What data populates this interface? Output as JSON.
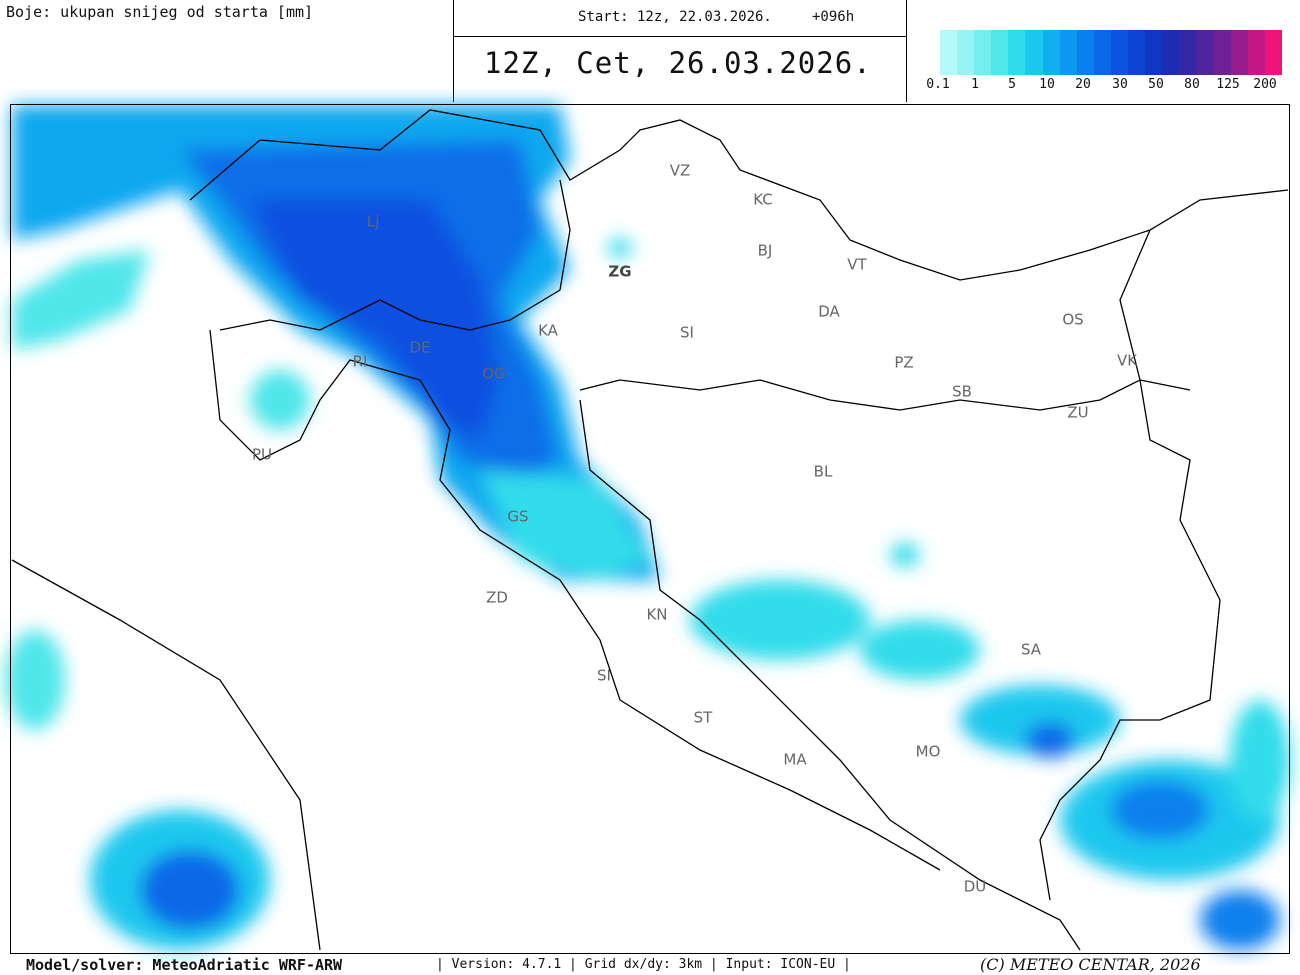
{
  "header": {
    "legend_title": "Boje: ukupan snijeg od starta [mm]",
    "start": "Start: 12z, 22.03.2026.",
    "lead": "+096h",
    "valid": "12Z, Cet, 26.03.2026."
  },
  "colorbar": {
    "colors": [
      "#b4fafa",
      "#96f4f4",
      "#74eeee",
      "#50e6ea",
      "#30dcea",
      "#1cc8ee",
      "#10b0f0",
      "#0c98f0",
      "#0a80ee",
      "#0a68e8",
      "#0c54e0",
      "#0e44d4",
      "#1236c4",
      "#1e2cb4",
      "#3428a8",
      "#50249e",
      "#6e2096",
      "#981c8e",
      "#c41886",
      "#ee147c"
    ],
    "labels": [
      "0.1",
      "1",
      "5",
      "10",
      "20",
      "30",
      "50",
      "80",
      "125",
      "200"
    ]
  },
  "map": {
    "labels": [
      "VZ",
      "KC",
      "BJ",
      "VT",
      "ZG",
      "Lj",
      "KA",
      "SI",
      "DA",
      "OS",
      "VK",
      "PZ",
      "SB",
      "ZU",
      "BL",
      "RI",
      "DE",
      "OG",
      "PU",
      "GS",
      "ZD",
      "KN",
      "SI",
      "SA",
      "ST",
      "MO",
      "MA",
      "DU"
    ]
  },
  "footer": {
    "model": "Model/solver: MeteoAdriatic WRF-ARW",
    "info": "| Version: 4.7.1 | Grid dx/dy: 3km | Input: ICON-EU |",
    "copyright": "(C) METEO CENTAR, 2026"
  }
}
